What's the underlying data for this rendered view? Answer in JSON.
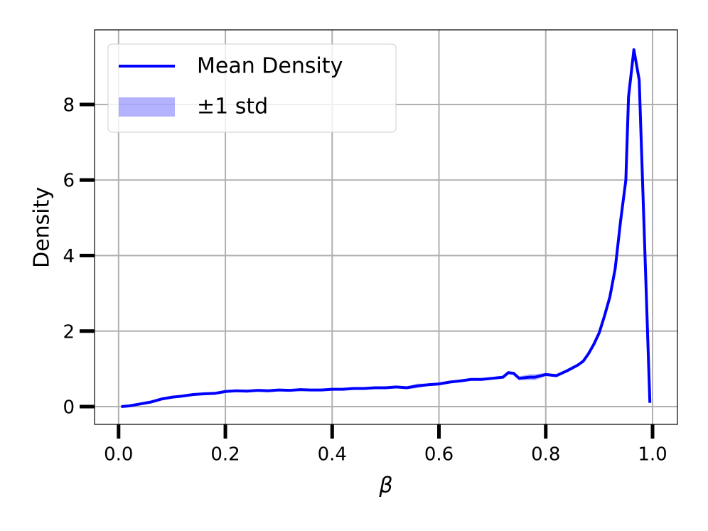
{
  "chart_data": {
    "type": "line",
    "xlabel": "β",
    "ylabel": "Density",
    "x": [
      0.005,
      0.02,
      0.04,
      0.06,
      0.08,
      0.1,
      0.12,
      0.14,
      0.16,
      0.18,
      0.2,
      0.22,
      0.24,
      0.26,
      0.28,
      0.3,
      0.32,
      0.34,
      0.36,
      0.38,
      0.4,
      0.42,
      0.44,
      0.46,
      0.48,
      0.5,
      0.52,
      0.54,
      0.56,
      0.58,
      0.6,
      0.62,
      0.64,
      0.66,
      0.68,
      0.7,
      0.72,
      0.73,
      0.74,
      0.75,
      0.77,
      0.78,
      0.8,
      0.82,
      0.84,
      0.86,
      0.87,
      0.88,
      0.89,
      0.9,
      0.91,
      0.92,
      0.93,
      0.94,
      0.95,
      0.955,
      0.965,
      0.975,
      0.995
    ],
    "series": [
      {
        "name": "Mean Density",
        "color": "#0000ff",
        "values": [
          0.0,
          0.02,
          0.07,
          0.12,
          0.2,
          0.25,
          0.28,
          0.32,
          0.34,
          0.35,
          0.4,
          0.42,
          0.41,
          0.43,
          0.42,
          0.44,
          0.43,
          0.45,
          0.44,
          0.44,
          0.46,
          0.46,
          0.48,
          0.48,
          0.5,
          0.5,
          0.52,
          0.5,
          0.55,
          0.58,
          0.6,
          0.65,
          0.68,
          0.72,
          0.72,
          0.75,
          0.78,
          0.9,
          0.88,
          0.75,
          0.78,
          0.78,
          0.85,
          0.82,
          0.95,
          1.1,
          1.2,
          1.4,
          1.65,
          1.95,
          2.4,
          2.9,
          3.65,
          4.9,
          6.0,
          8.2,
          9.45,
          8.65,
          0.1
        ]
      }
    ],
    "band": {
      "name": "±1 std",
      "color": "#0000ff",
      "std": [
        0.02,
        0.02,
        0.02,
        0.02,
        0.02,
        0.02,
        0.02,
        0.02,
        0.02,
        0.02,
        0.02,
        0.02,
        0.02,
        0.02,
        0.02,
        0.02,
        0.02,
        0.02,
        0.02,
        0.02,
        0.02,
        0.02,
        0.02,
        0.02,
        0.02,
        0.02,
        0.03,
        0.04,
        0.06,
        0.03,
        0.03,
        0.03,
        0.03,
        0.03,
        0.03,
        0.03,
        0.03,
        0.04,
        0.04,
        0.05,
        0.08,
        0.08,
        0.04,
        0.04,
        0.04,
        0.04,
        0.04,
        0.04,
        0.04,
        0.04,
        0.05,
        0.05,
        0.05,
        0.06,
        0.06,
        0.06,
        0.06,
        0.06,
        0.05
      ]
    },
    "xlim": [
      -0.045,
      1.0466
    ],
    "ylim": [
      -0.47,
      9.976
    ],
    "xticks": [
      {
        "value": 0,
        "label": "0.0"
      },
      0.2,
      0.4,
      0.6,
      0.8,
      {
        "value": 1,
        "label": "1.0"
      }
    ],
    "yticks": [
      0,
      2,
      4,
      6,
      8
    ],
    "grid": true,
    "legend": "upper left"
  }
}
